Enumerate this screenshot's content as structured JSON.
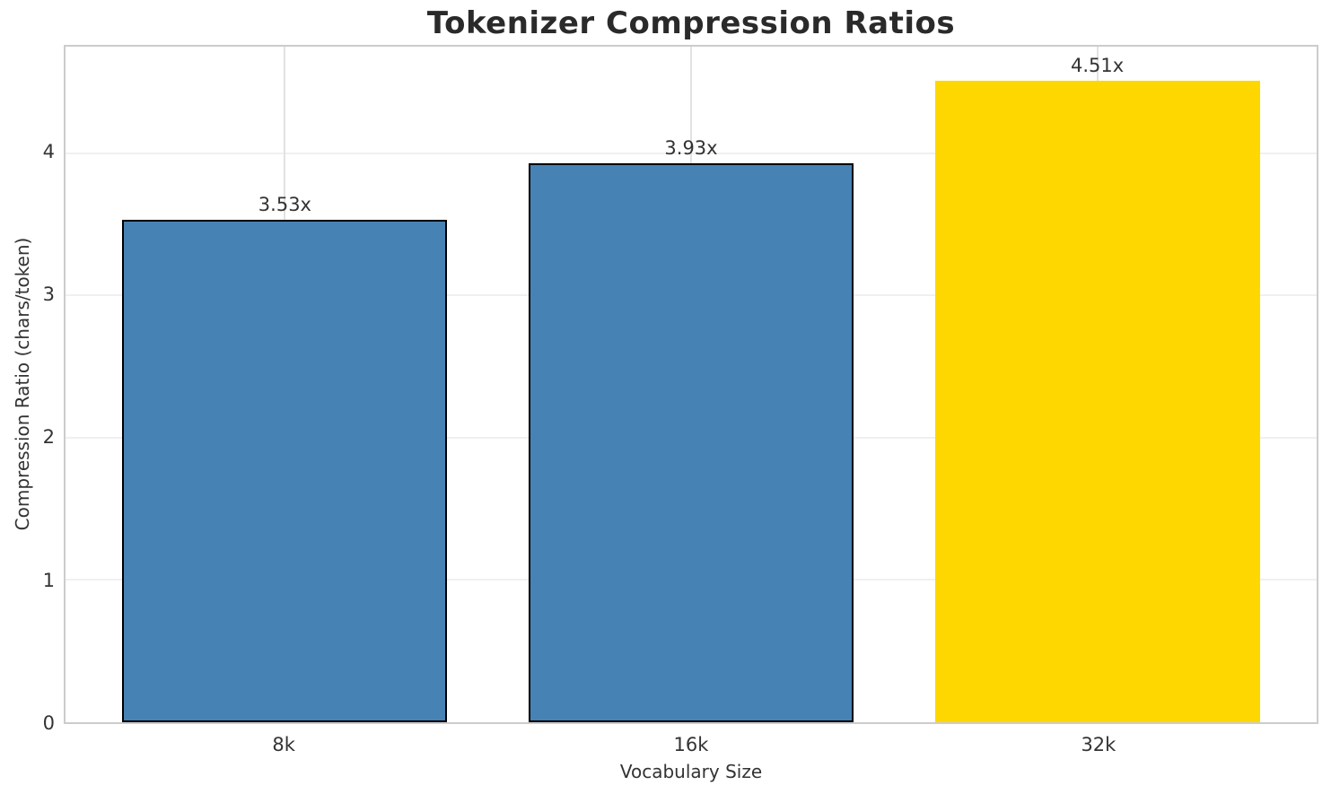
{
  "title": "Tokenizer Compression Ratios",
  "chart_data": {
    "type": "bar",
    "title": "Tokenizer Compression Ratios",
    "xlabel": "Vocabulary Size",
    "ylabel": "Compression Ratio (chars/token)",
    "categories": [
      "8k",
      "16k",
      "32k"
    ],
    "values": [
      3.53,
      3.93,
      4.51
    ],
    "bar_labels": [
      "3.53x",
      "3.93x",
      "4.51x"
    ],
    "bar_colors": [
      "#4682B4",
      "#4682B4",
      "#FFD700"
    ],
    "bar_edge_colors": [
      "#000000",
      "#000000",
      "none"
    ],
    "ylim": [
      0,
      4.75
    ],
    "yticks": [
      0,
      1,
      2,
      3,
      4
    ],
    "grid": true,
    "legend_position": "none",
    "colors": {
      "highlight_bar": "#FFD700",
      "default_bar": "#4682B4",
      "spine": "#cccccc",
      "grid_h": "#f0f0f0",
      "grid_v": "#e2e2e2",
      "text": "#333333",
      "title_text": "#2a2a2a"
    }
  }
}
